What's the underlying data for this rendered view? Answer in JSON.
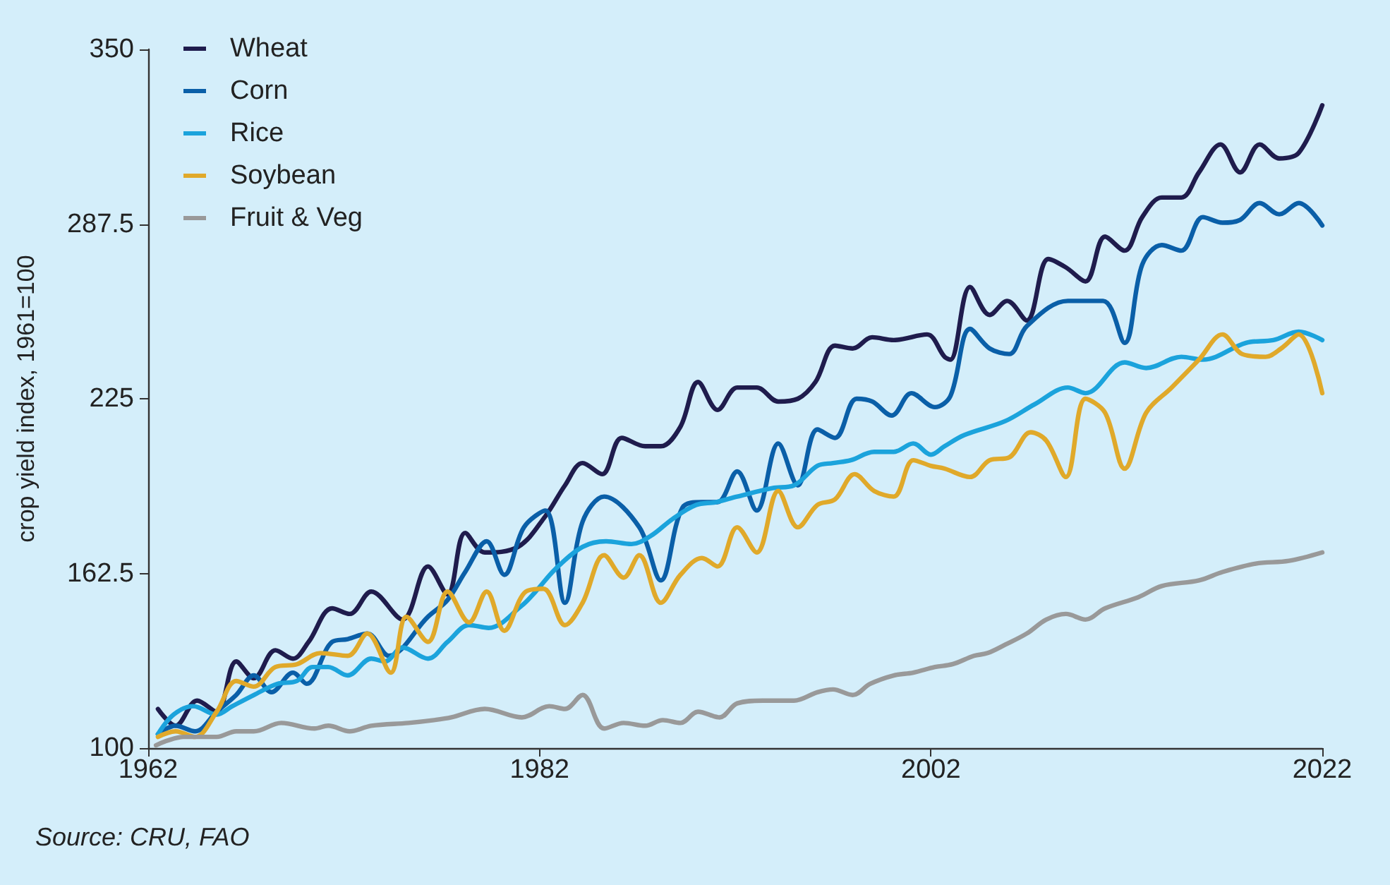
{
  "chart_data": {
    "type": "line",
    "ylabel": "crop yield index, 1961=100",
    "annotations": [
      "Source: CRU, FAO"
    ],
    "xlim": [
      1962,
      2022
    ],
    "xticks": [
      1962,
      1982,
      2002,
      2022
    ],
    "ylim": [
      100,
      350
    ],
    "yticks": [
      100,
      162.5,
      225,
      287.5,
      350
    ],
    "grid": false,
    "legend": "top left",
    "marker": "none",
    "line_style": "solid",
    "series": [
      {
        "name": "Wheat",
        "color": "#1f1c4d",
        "x": [
          1962.5,
          1963.4,
          1964.5,
          1965.5,
          1966.5,
          1967.4,
          1968.5,
          1969.4,
          1970.2,
          1971.4,
          1972.3,
          1973.4,
          1975.0,
          1976.3,
          1977.3,
          1978.2,
          1979.2,
          1980.9,
          1982.3,
          1983.3,
          1984.2,
          1985.2,
          1986.2,
          1987.4,
          1988.2,
          1989.2,
          1990.1,
          1991.1,
          1992.1,
          1993.1,
          1994.2,
          1995.2,
          1996.1,
          1997.1,
          1998.0,
          1999.0,
          2000.1,
          2001.8,
          2002.7,
          2003.0,
          2004.0,
          2005.0,
          2005.9,
          2006.9,
          2008.0,
          2008.9,
          2009.9,
          2010.9,
          2011.9,
          2012.8,
          2013.8,
          2014.8,
          2015.7,
          2016.8,
          2017.8,
          2018.8,
          2019.8,
          2020.8,
          2022.0
        ],
        "values": [
          114,
          108,
          117,
          113,
          131,
          125,
          135,
          132,
          138,
          150,
          148,
          156,
          146,
          165,
          155,
          177,
          170,
          172,
          183,
          194,
          202,
          198,
          211,
          208,
          208,
          215,
          231,
          221,
          229,
          229,
          224,
          225,
          231,
          244,
          243,
          247,
          246,
          248,
          240,
          239,
          265,
          255,
          260,
          253,
          275,
          272,
          267,
          283,
          278,
          290,
          297,
          297,
          306,
          316,
          306,
          316,
          311,
          313,
          330
        ]
      },
      {
        "name": "Corn",
        "color": "#0a5fa8",
        "x": [
          1962.5,
          1963.4,
          1964.4,
          1965.5,
          1966.5,
          1967.4,
          1968.3,
          1969.4,
          1970.1,
          1971.4,
          1972.2,
          1973.2,
          1974.3,
          1976.3,
          1977.3,
          1978.2,
          1979.3,
          1980.2,
          1981.2,
          1982.3,
          1983.3,
          1984.2,
          1985.3,
          1987.1,
          1988.2,
          1989.3,
          1990.3,
          1991.1,
          1992.1,
          1993.1,
          1994.2,
          1995.2,
          1996.2,
          1997.1,
          1998.2,
          1999.0,
          2000.0,
          2001.0,
          2002.2,
          2003.0,
          2004.0,
          2005.0,
          2006.0,
          2006.9,
          2009.0,
          2010.8,
          2011.9,
          2012.8,
          2013.8,
          2014.8,
          2015.9,
          2016.9,
          2017.8,
          2018.8,
          2019.8,
          2020.8,
          2022.0
        ],
        "values": [
          105,
          108,
          106,
          113,
          119,
          126,
          120,
          127,
          123,
          138,
          139,
          141,
          133,
          147,
          153,
          163,
          174,
          162,
          179,
          185,
          152,
          181,
          190,
          179,
          160,
          186,
          188,
          188,
          199,
          185,
          209,
          194,
          214,
          211,
          225,
          224,
          219,
          227,
          222,
          226,
          250,
          243,
          241,
          251,
          260,
          260,
          245,
          273,
          280,
          278,
          290,
          288,
          289,
          295,
          291,
          295,
          287
        ]
      },
      {
        "name": "Rice",
        "color": "#1ba3dc",
        "x": [
          1962.5,
          1963.3,
          1964.3,
          1965.5,
          1966.3,
          1967.4,
          1968.6,
          1969.6,
          1970.4,
          1971.2,
          1972.2,
          1973.4,
          1974.1,
          1975.0,
          1976.3,
          1977.3,
          1978.4,
          1979.4,
          1981.1,
          1981.8,
          1982.8,
          1984.2,
          1985.4,
          1986.7,
          1987.7,
          1988.8,
          1990.0,
          1991.0,
          1992.1,
          1993.9,
          1995.0,
          1996.2,
          1997.0,
          1997.9,
          1999.1,
          2000.1,
          2001.1,
          2002.0,
          2002.7,
          2003.7,
          2005.8,
          2007.3,
          2009.0,
          2009.9,
          2011.9,
          2013.0,
          2014.8,
          2015.9,
          2018.1,
          2019.5,
          2020.8,
          2022.0
        ],
        "values": [
          105,
          112,
          115,
          112,
          115,
          119,
          123,
          124,
          129,
          129,
          126,
          132,
          131,
          136,
          132,
          138,
          144,
          143,
          151,
          156,
          164,
          172,
          174,
          173,
          176,
          182,
          187,
          188,
          190,
          193,
          194,
          201,
          202,
          203,
          206,
          206,
          209,
          205,
          208,
          212,
          217,
          223,
          229,
          227,
          238,
          236,
          240,
          239,
          245,
          246,
          249,
          246
        ]
      },
      {
        "name": "Soybean",
        "color": "#e0a92a",
        "x": [
          1962.5,
          1963.4,
          1964.4,
          1965.5,
          1966.5,
          1967.4,
          1968.5,
          1969.6,
          1970.8,
          1972.2,
          1973.2,
          1974.4,
          1975.2,
          1976.3,
          1977.3,
          1978.4,
          1979.3,
          1980.2,
          1981.3,
          1982.2,
          1983.3,
          1984.2,
          1985.3,
          1986.3,
          1987.1,
          1988.2,
          1989.2,
          1990.3,
          1991.1,
          1992.1,
          1993.1,
          1994.2,
          1995.2,
          1996.2,
          1997.1,
          1998.1,
          1999.1,
          2000.1,
          2001.1,
          2002.0,
          2002.7,
          2004.0,
          2005.0,
          2006.0,
          2007.1,
          2007.9,
          2008.9,
          2009.9,
          2010.9,
          2011.9,
          2013.0,
          2014.3,
          2015.7,
          2016.9,
          2017.9,
          2019.1,
          2019.9,
          2020.8,
          2022.0
        ],
        "values": [
          104,
          106,
          104,
          113,
          124,
          122,
          129,
          130,
          134,
          133,
          141,
          127,
          147,
          138,
          156,
          145,
          156,
          142,
          156,
          157,
          144,
          152,
          169,
          161,
          169,
          152,
          162,
          168,
          165,
          179,
          170,
          192,
          179,
          187,
          189,
          198,
          192,
          190,
          203,
          201,
          200,
          197,
          203,
          204,
          213,
          210,
          197,
          225,
          220,
          200,
          220,
          229,
          239,
          248,
          241,
          240,
          243,
          248,
          227
        ]
      },
      {
        "name": "Fruit & Veg",
        "color": "#999999",
        "x": [
          1962.4,
          1963.8,
          1965.5,
          1966.5,
          1967.4,
          1968.8,
          1970.5,
          1971.2,
          1972.3,
          1973.4,
          1975.3,
          1976.6,
          1977.5,
          1979.2,
          1981.1,
          1982.5,
          1983.3,
          1984.2,
          1985.3,
          1986.3,
          1987.4,
          1988.3,
          1989.2,
          1990.1,
          1991.2,
          1992.1,
          1993.4,
          1995.0,
          1996.2,
          1997.0,
          1998.0,
          1998.9,
          2000.1,
          2001.1,
          2002.2,
          2003.1,
          2004.2,
          2004.9,
          2005.8,
          2006.9,
          2007.9,
          2008.9,
          2009.9,
          2010.9,
          2012.6,
          2013.8,
          2015.7,
          2016.9,
          2018.6,
          2020.3,
          2022.0
        ],
        "values": [
          101,
          104,
          104,
          106,
          106,
          109,
          107,
          108,
          106,
          108,
          109,
          110,
          111,
          114,
          111,
          115,
          114,
          119,
          107,
          109,
          108,
          110,
          109,
          113,
          111,
          116,
          117,
          117,
          120,
          121,
          119,
          123,
          126,
          127,
          129,
          130,
          133,
          134,
          137,
          141,
          146,
          148,
          146,
          150,
          154,
          158,
          160,
          163,
          166,
          167,
          170
        ]
      }
    ]
  }
}
